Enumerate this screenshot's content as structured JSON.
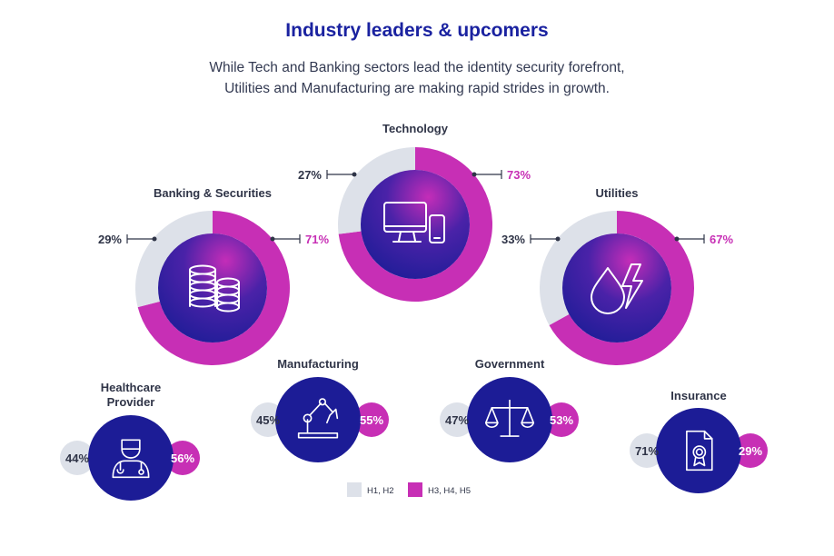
{
  "header": {
    "title": "Industry leaders & upcomers",
    "subtitle_line1": "While Tech and Banking sectors lead the identity security forefront,",
    "subtitle_line2": "Utilities and Manufacturing are making rapid strides in growth."
  },
  "colors": {
    "h1h2": "#dde1e9",
    "h3h5": "#c72fb5",
    "navy": "#1c1c96",
    "text_dark": "#2f3447",
    "title": "#1a22a0"
  },
  "chart_data": {
    "type": "pie",
    "series_names": [
      "H1, H2",
      "H3, H4, H5"
    ],
    "legend": [
      {
        "label": "H1, H2",
        "color": "#dde1e9"
      },
      {
        "label": "H3, H4, H5",
        "color": "#c72fb5"
      }
    ],
    "legend_position": "bottom-center",
    "industries": [
      {
        "name": "Banking & Securities",
        "h1h2": 29,
        "h3h5": 71,
        "h1h2_label": "29%",
        "h3h5_label": "71%",
        "icon": "coins-icon"
      },
      {
        "name": "Technology",
        "h1h2": 27,
        "h3h5": 73,
        "h1h2_label": "27%",
        "h3h5_label": "73%",
        "icon": "devices-icon"
      },
      {
        "name": "Utilities",
        "h1h2": 33,
        "h3h5": 67,
        "h1h2_label": "33%",
        "h3h5_label": "67%",
        "icon": "water-power-icon"
      },
      {
        "name": "Healthcare Provider",
        "h1h2": 44,
        "h3h5": 56,
        "h1h2_label": "44%",
        "h3h5_label": "56%",
        "icon": "doctor-icon"
      },
      {
        "name": "Manufacturing",
        "h1h2": 45,
        "h3h5": 55,
        "h1h2_label": "45%",
        "h3h5_label": "55%",
        "icon": "robot-arm-icon"
      },
      {
        "name": "Government",
        "h1h2": 47,
        "h3h5": 53,
        "h1h2_label": "47%",
        "h3h5_label": "53%",
        "icon": "scales-icon"
      },
      {
        "name": "Insurance",
        "h1h2": 71,
        "h3h5": 29,
        "h1h2_label": "71%",
        "h3h5_label": "29%",
        "icon": "certificate-icon"
      }
    ]
  }
}
